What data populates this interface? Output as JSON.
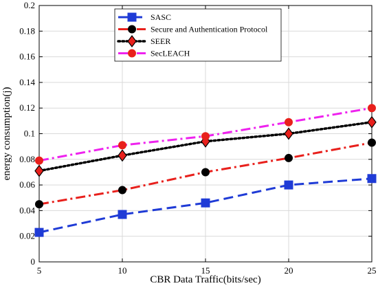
{
  "chart_data": {
    "type": "line",
    "title": "",
    "xlabel": "CBR Data Traffic(bits/sec)",
    "ylabel": "energy consumption(j)",
    "x": [
      5,
      10,
      15,
      20,
      25
    ],
    "xlim": [
      5,
      25
    ],
    "ylim": [
      0,
      0.2
    ],
    "xticks": [
      "5",
      "10",
      "15",
      "20",
      "25"
    ],
    "yticks": [
      "0",
      "0.02",
      "0.04",
      "0.06",
      "0.08",
      "0.1",
      "0.12",
      "0.14",
      "0.16",
      "0.18",
      "0.2"
    ],
    "grid": true,
    "legend_position": "top-left",
    "series": [
      {
        "name": "SASC",
        "values": [
          0.023,
          0.037,
          0.046,
          0.06,
          0.065
        ],
        "color": "#1f3bd6",
        "dash": "dashed",
        "marker": "square"
      },
      {
        "name": "Secure and Authentication Protocol",
        "values": [
          0.045,
          0.056,
          0.07,
          0.081,
          0.093
        ],
        "color": "#e8201c",
        "dash": "dashdot",
        "marker": "circle-black"
      },
      {
        "name": "SEER",
        "values": [
          0.071,
          0.083,
          0.094,
          0.1,
          0.109
        ],
        "color": "#000000",
        "dash": "dotted",
        "marker": "diamond-red"
      },
      {
        "name": "SecLEACH",
        "values": [
          0.079,
          0.091,
          0.098,
          0.109,
          0.12
        ],
        "color": "#ee22ee",
        "dash": "dashdot",
        "marker": "circle-red"
      }
    ]
  }
}
